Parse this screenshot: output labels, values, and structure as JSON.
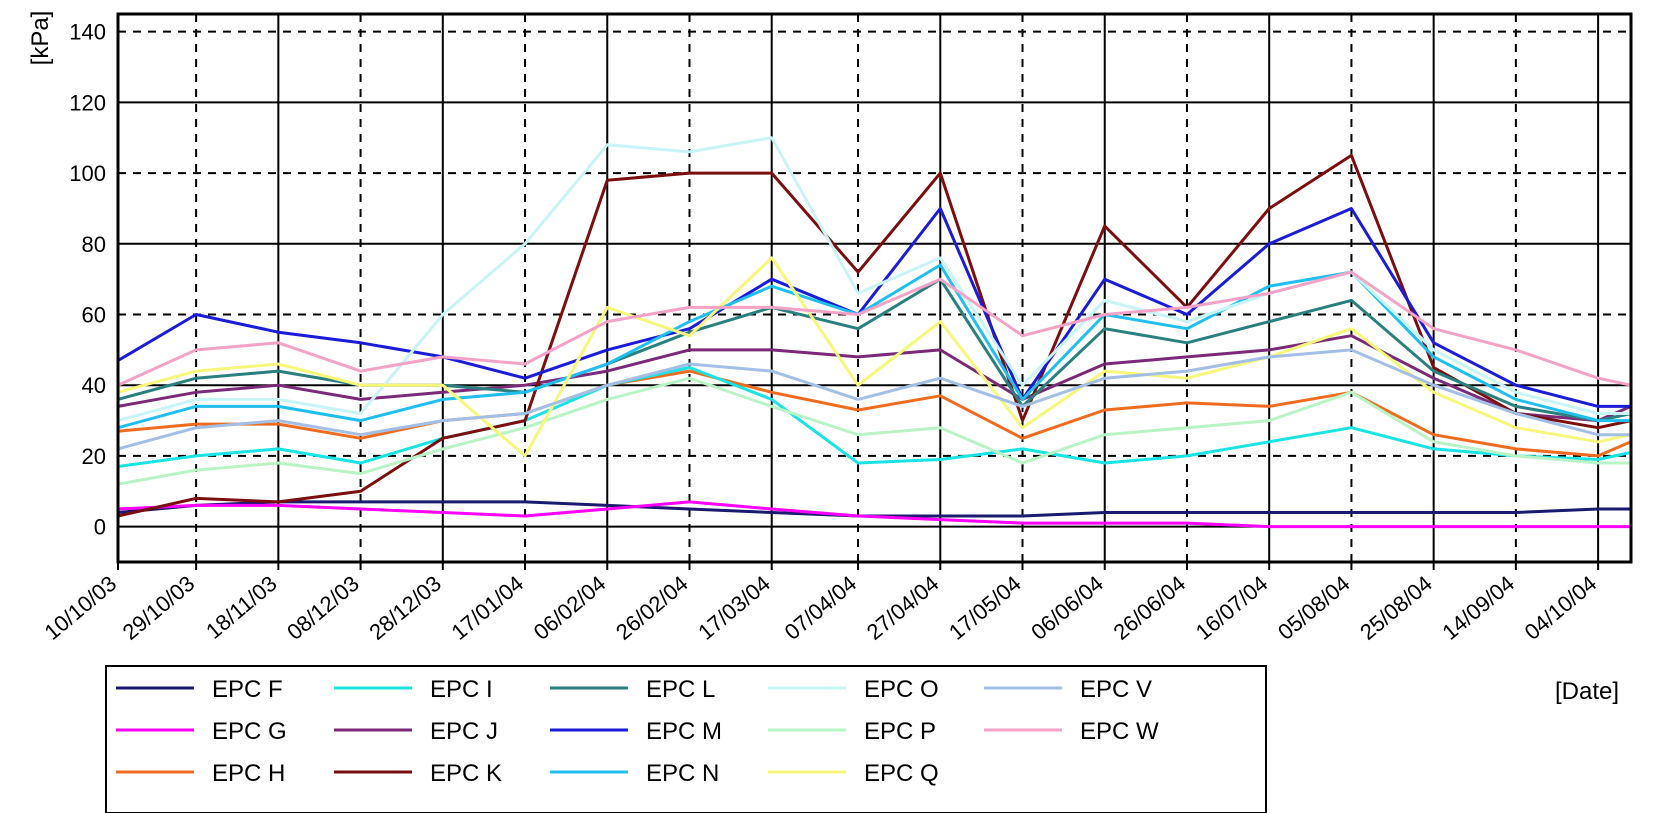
{
  "chart_data": {
    "type": "line",
    "ylabel": "[kPa]",
    "xlabel": "[Date]",
    "ylim": [
      -10,
      145
    ],
    "yticks": [
      0,
      20,
      40,
      60,
      80,
      100,
      120,
      140
    ],
    "xlim": [
      "2003-10-10",
      "2004-10-12"
    ],
    "xticks": [
      "10/10/03",
      "29/10/03",
      "18/11/03",
      "08/12/03",
      "28/12/03",
      "17/01/04",
      "06/02/04",
      "26/02/04",
      "17/03/04",
      "07/04/04",
      "27/04/04",
      "17/05/04",
      "06/06/04",
      "26/06/04",
      "16/07/04",
      "05/08/04",
      "25/08/04",
      "14/09/04",
      "04/10/04"
    ],
    "xtick_dates": [
      "2003-10-10",
      "2003-10-29",
      "2003-11-18",
      "2003-12-08",
      "2003-12-28",
      "2004-01-17",
      "2004-02-06",
      "2004-02-26",
      "2004-03-17",
      "2004-04-07",
      "2004-04-27",
      "2004-05-17",
      "2004-06-06",
      "2004-06-26",
      "2004-07-16",
      "2004-08-05",
      "2004-08-25",
      "2004-09-14",
      "2004-10-04"
    ],
    "grid": true,
    "legend_position": "bottom-left",
    "series": [
      {
        "name": "EPC F",
        "color": "#1a1a6e",
        "x": [
          "2003-10-10",
          "2003-10-29",
          "2003-11-18",
          "2003-12-08",
          "2003-12-28",
          "2004-01-17",
          "2004-02-06",
          "2004-02-26",
          "2004-03-17",
          "2004-04-07",
          "2004-04-27",
          "2004-05-17",
          "2004-06-06",
          "2004-06-26",
          "2004-07-16",
          "2004-08-05",
          "2004-08-25",
          "2004-09-14",
          "2004-10-04",
          "2004-10-12"
        ],
        "y": [
          4,
          6,
          7,
          7,
          7,
          7,
          6,
          5,
          4,
          3,
          3,
          3,
          4,
          4,
          4,
          4,
          4,
          4,
          5,
          5
        ]
      },
      {
        "name": "EPC G",
        "color": "#ff00ff",
        "x": [
          "2003-10-10",
          "2003-10-29",
          "2003-11-18",
          "2003-12-08",
          "2003-12-28",
          "2004-01-17",
          "2004-02-06",
          "2004-02-26",
          "2004-03-17",
          "2004-04-07",
          "2004-04-27",
          "2004-05-17",
          "2004-06-06",
          "2004-06-26",
          "2004-07-16",
          "2004-08-05",
          "2004-08-25",
          "2004-09-14",
          "2004-10-04",
          "2004-10-12"
        ],
        "y": [
          5,
          6,
          6,
          5,
          4,
          3,
          5,
          7,
          5,
          3,
          2,
          1,
          1,
          1,
          0,
          0,
          0,
          0,
          0,
          0
        ]
      },
      {
        "name": "EPC H",
        "color": "#ef6c1f",
        "x": [
          "2003-10-10",
          "2003-10-29",
          "2003-11-18",
          "2003-12-08",
          "2003-12-28",
          "2004-01-17",
          "2004-02-06",
          "2004-02-26",
          "2004-03-17",
          "2004-04-07",
          "2004-04-27",
          "2004-05-17",
          "2004-06-06",
          "2004-06-26",
          "2004-07-16",
          "2004-08-05",
          "2004-08-25",
          "2004-09-14",
          "2004-10-04",
          "2004-10-12"
        ],
        "y": [
          27,
          29,
          29,
          25,
          30,
          32,
          40,
          44,
          38,
          33,
          37,
          25,
          33,
          35,
          34,
          38,
          26,
          22,
          20,
          24
        ]
      },
      {
        "name": "EPC I",
        "color": "#19e3e3",
        "x": [
          "2003-10-10",
          "2003-10-29",
          "2003-11-18",
          "2003-12-08",
          "2003-12-28",
          "2004-01-17",
          "2004-02-06",
          "2004-02-26",
          "2004-03-17",
          "2004-04-07",
          "2004-04-27",
          "2004-05-17",
          "2004-06-06",
          "2004-06-26",
          "2004-07-16",
          "2004-08-05",
          "2004-08-25",
          "2004-09-14",
          "2004-10-04",
          "2004-10-12"
        ],
        "y": [
          17,
          20,
          22,
          18,
          25,
          30,
          40,
          45,
          36,
          18,
          19,
          22,
          18,
          20,
          24,
          28,
          22,
          20,
          19,
          21
        ]
      },
      {
        "name": "EPC J",
        "color": "#7a2a78",
        "x": [
          "2003-10-10",
          "2003-10-29",
          "2003-11-18",
          "2003-12-08",
          "2003-12-28",
          "2004-01-17",
          "2004-02-06",
          "2004-02-26",
          "2004-03-17",
          "2004-04-07",
          "2004-04-27",
          "2004-05-17",
          "2004-06-06",
          "2004-06-26",
          "2004-07-16",
          "2004-08-05",
          "2004-08-25",
          "2004-09-14",
          "2004-10-04",
          "2004-10-12"
        ],
        "y": [
          34,
          38,
          40,
          36,
          38,
          40,
          44,
          50,
          50,
          48,
          50,
          36,
          46,
          48,
          50,
          54,
          42,
          32,
          30,
          34
        ]
      },
      {
        "name": "EPC K",
        "color": "#7b0e0e",
        "x": [
          "2003-10-10",
          "2003-10-29",
          "2003-11-18",
          "2003-12-08",
          "2003-12-28",
          "2004-01-17",
          "2004-02-06",
          "2004-02-26",
          "2004-03-17",
          "2004-04-07",
          "2004-04-27",
          "2004-05-17",
          "2004-06-06",
          "2004-06-26",
          "2004-07-16",
          "2004-08-05",
          "2004-08-25",
          "2004-09-14",
          "2004-10-04",
          "2004-10-12"
        ],
        "y": [
          3,
          8,
          7,
          10,
          25,
          30,
          98,
          100,
          100,
          72,
          100,
          30,
          85,
          62,
          90,
          105,
          45,
          32,
          28,
          30
        ]
      },
      {
        "name": "EPC L",
        "color": "#2a7f7f",
        "x": [
          "2003-10-10",
          "2003-10-29",
          "2003-11-18",
          "2003-12-08",
          "2003-12-28",
          "2004-01-17",
          "2004-02-06",
          "2004-02-26",
          "2004-03-17",
          "2004-04-07",
          "2004-04-27",
          "2004-05-17",
          "2004-06-06",
          "2004-06-26",
          "2004-07-16",
          "2004-08-05",
          "2004-08-25",
          "2004-09-14",
          "2004-10-04",
          "2004-10-12"
        ],
        "y": [
          36,
          42,
          44,
          40,
          40,
          38,
          46,
          55,
          62,
          56,
          70,
          34,
          56,
          52,
          58,
          64,
          44,
          34,
          30,
          32
        ]
      },
      {
        "name": "EPC M",
        "color": "#1b1bd8",
        "x": [
          "2003-10-10",
          "2003-10-29",
          "2003-11-18",
          "2003-12-08",
          "2003-12-28",
          "2004-01-17",
          "2004-02-06",
          "2004-02-26",
          "2004-03-17",
          "2004-04-07",
          "2004-04-27",
          "2004-05-17",
          "2004-06-06",
          "2004-06-26",
          "2004-07-16",
          "2004-08-05",
          "2004-08-25",
          "2004-09-14",
          "2004-10-04",
          "2004-10-12"
        ],
        "y": [
          47,
          60,
          55,
          52,
          48,
          42,
          50,
          56,
          70,
          60,
          90,
          36,
          70,
          60,
          80,
          90,
          52,
          40,
          34,
          34
        ]
      },
      {
        "name": "EPC N",
        "color": "#1fbfef",
        "x": [
          "2003-10-10",
          "2003-10-29",
          "2003-11-18",
          "2003-12-08",
          "2003-12-28",
          "2004-01-17",
          "2004-02-06",
          "2004-02-26",
          "2004-03-17",
          "2004-04-07",
          "2004-04-27",
          "2004-05-17",
          "2004-06-06",
          "2004-06-26",
          "2004-07-16",
          "2004-08-05",
          "2004-08-25",
          "2004-09-14",
          "2004-10-04",
          "2004-10-12"
        ],
        "y": [
          28,
          34,
          34,
          30,
          36,
          38,
          46,
          58,
          68,
          60,
          74,
          36,
          60,
          56,
          68,
          72,
          48,
          36,
          30,
          30
        ]
      },
      {
        "name": "EPC O",
        "color": "#c8f4f8",
        "x": [
          "2003-10-10",
          "2003-10-29",
          "2003-11-18",
          "2003-12-08",
          "2003-12-28",
          "2004-01-17",
          "2004-02-06",
          "2004-02-26",
          "2004-03-17",
          "2004-04-07",
          "2004-04-27",
          "2004-05-17",
          "2004-06-06",
          "2004-06-26",
          "2004-07-16",
          "2004-08-05",
          "2004-08-25",
          "2004-09-14",
          "2004-10-04",
          "2004-10-12"
        ],
        "y": [
          30,
          36,
          36,
          32,
          60,
          80,
          108,
          106,
          110,
          66,
          76,
          40,
          64,
          58,
          66,
          72,
          50,
          38,
          32,
          32
        ]
      },
      {
        "name": "EPC P",
        "color": "#b9f3c6",
        "x": [
          "2003-10-10",
          "2003-10-29",
          "2003-11-18",
          "2003-12-08",
          "2003-12-28",
          "2004-01-17",
          "2004-02-06",
          "2004-02-26",
          "2004-03-17",
          "2004-04-07",
          "2004-04-27",
          "2004-05-17",
          "2004-06-06",
          "2004-06-26",
          "2004-07-16",
          "2004-08-05",
          "2004-08-25",
          "2004-09-14",
          "2004-10-04",
          "2004-10-12"
        ],
        "y": [
          12,
          16,
          18,
          15,
          22,
          28,
          36,
          42,
          34,
          26,
          28,
          18,
          26,
          28,
          30,
          38,
          24,
          20,
          18,
          18
        ]
      },
      {
        "name": "EPC Q",
        "color": "#f7f77a",
        "x": [
          "2003-10-10",
          "2003-10-29",
          "2003-11-18",
          "2003-12-08",
          "2003-12-28",
          "2004-01-17",
          "2004-02-06",
          "2004-02-26",
          "2004-03-17",
          "2004-04-07",
          "2004-04-27",
          "2004-05-17",
          "2004-06-06",
          "2004-06-26",
          "2004-07-16",
          "2004-08-05",
          "2004-08-25",
          "2004-09-14",
          "2004-10-04",
          "2004-10-12"
        ],
        "y": [
          38,
          44,
          46,
          40,
          40,
          20,
          62,
          54,
          76,
          40,
          58,
          28,
          44,
          42,
          48,
          56,
          38,
          28,
          24,
          26
        ]
      },
      {
        "name": "EPC V",
        "color": "#a3bfe6",
        "x": [
          "2003-10-10",
          "2003-10-29",
          "2003-11-18",
          "2003-12-08",
          "2003-12-28",
          "2004-01-17",
          "2004-02-06",
          "2004-02-26",
          "2004-03-17",
          "2004-04-07",
          "2004-04-27",
          "2004-05-17",
          "2004-06-06",
          "2004-06-26",
          "2004-07-16",
          "2004-08-05",
          "2004-08-25",
          "2004-09-14",
          "2004-10-04",
          "2004-10-12"
        ],
        "y": [
          22,
          28,
          30,
          26,
          30,
          32,
          40,
          46,
          44,
          36,
          42,
          34,
          42,
          44,
          48,
          50,
          40,
          32,
          26,
          26
        ]
      },
      {
        "name": "EPC W",
        "color": "#f2a3c6",
        "x": [
          "2003-10-10",
          "2003-10-29",
          "2003-11-18",
          "2003-12-08",
          "2003-12-28",
          "2004-01-17",
          "2004-02-06",
          "2004-02-26",
          "2004-03-17",
          "2004-04-07",
          "2004-04-27",
          "2004-05-17",
          "2004-06-06",
          "2004-06-26",
          "2004-07-16",
          "2004-08-05",
          "2004-08-25",
          "2004-09-14",
          "2004-10-04",
          "2004-10-12"
        ],
        "y": [
          40,
          50,
          52,
          44,
          48,
          46,
          58,
          62,
          62,
          60,
          70,
          54,
          60,
          62,
          66,
          72,
          56,
          50,
          42,
          40
        ]
      }
    ]
  }
}
